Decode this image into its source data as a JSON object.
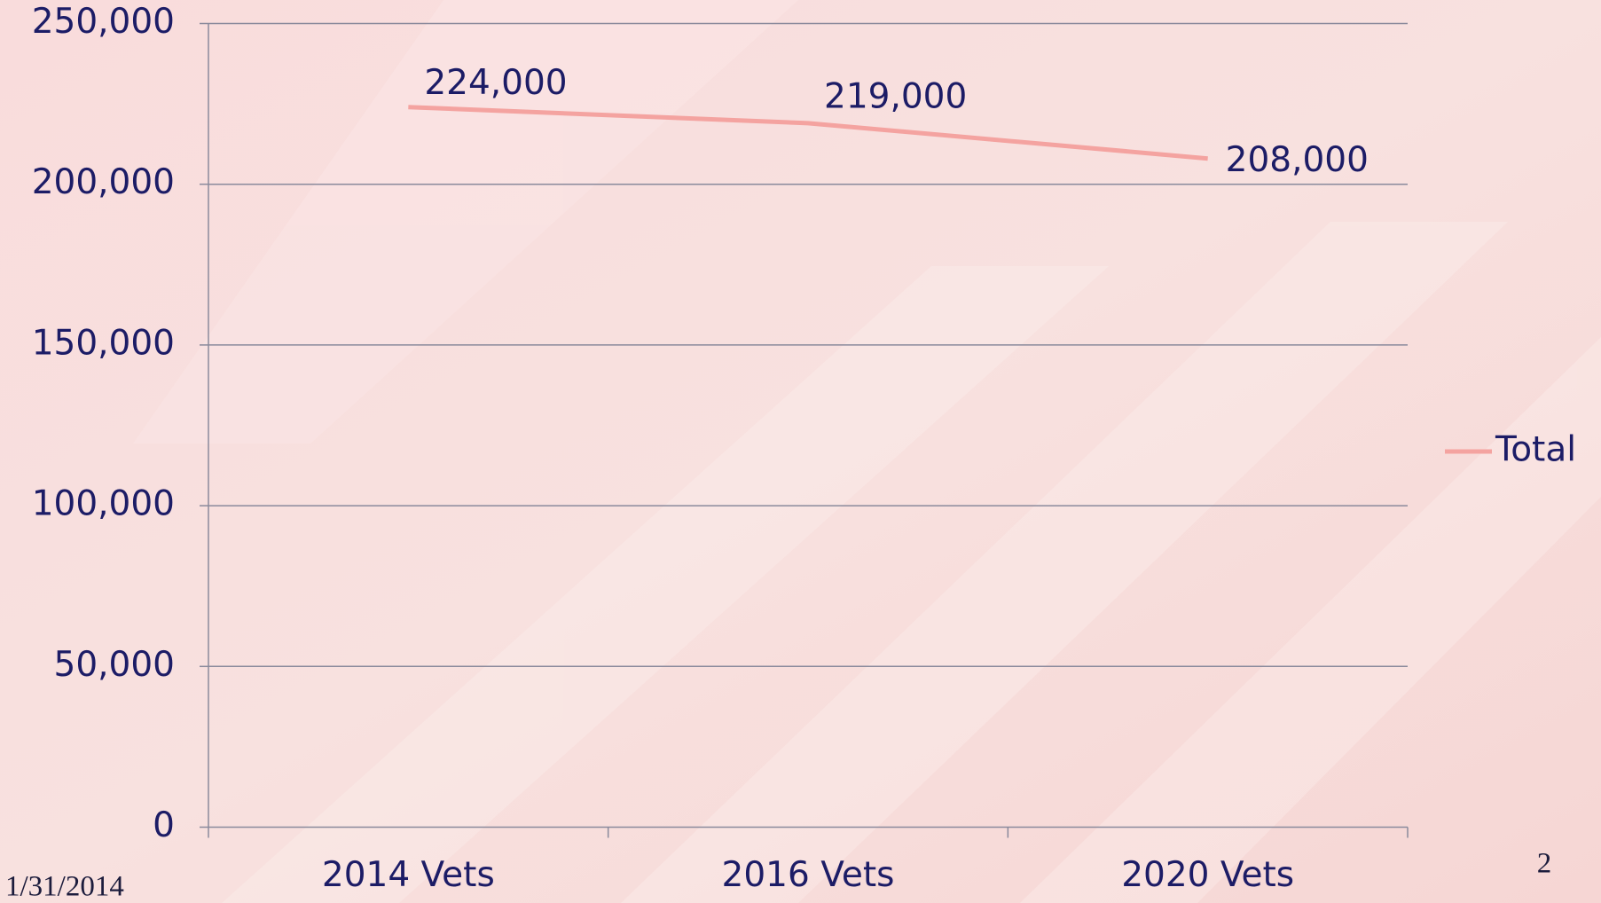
{
  "chart_data": {
    "type": "line",
    "categories": [
      "2014 Vets",
      "2016 Vets",
      "2020 Vets"
    ],
    "series": [
      {
        "name": "Total",
        "color": "#f4a3a0",
        "values": [
          224000,
          219000,
          208000
        ],
        "value_labels": [
          "224,000",
          "219,000",
          "208,000"
        ]
      }
    ],
    "ylim": [
      0,
      250000
    ],
    "yticks": [
      0,
      {
        "value": 50000,
        "label": "50,000"
      },
      {
        "value": 100000,
        "label": "100,000"
      },
      {
        "value": 150000,
        "label": "150,000"
      },
      {
        "value": 200000,
        "label": "200,000"
      },
      {
        "value": 250000,
        "label": "250,000"
      }
    ],
    "grid": true,
    "legend": "right"
  },
  "footer": {
    "date": "1/31/2014",
    "page_number": "2"
  }
}
